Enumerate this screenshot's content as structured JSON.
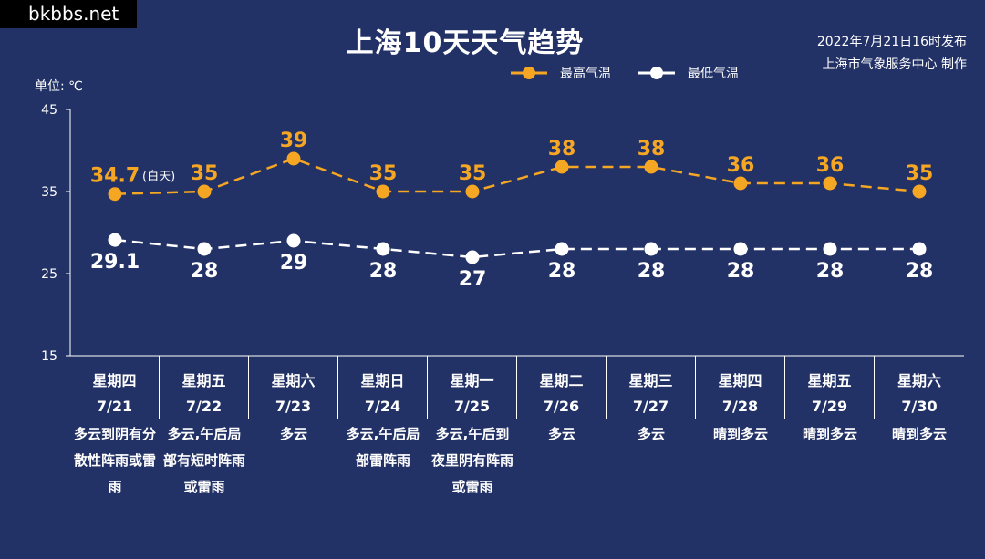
{
  "watermark": "bkbbs.net",
  "title": "上海10天天气趋势",
  "issued": {
    "line1": "2022年7月21日16时发布",
    "line2": "上海市气象服务中心 制作"
  },
  "unit_label": "单位: ℃",
  "legend": {
    "high": "最高气温",
    "low": "最低气温"
  },
  "colors": {
    "background": "#223166",
    "high": "#F5A623",
    "low": "#FFFFFF"
  },
  "chart_data": {
    "type": "line",
    "title": "上海10天天气趋势",
    "ylabel": "单位: ℃",
    "ylim": [
      15,
      45
    ],
    "yticks": [
      15,
      25,
      35,
      45
    ],
    "grid": false,
    "legend_position": "top-right",
    "categories": [
      "7/21",
      "7/22",
      "7/23",
      "7/24",
      "7/25",
      "7/26",
      "7/27",
      "7/28",
      "7/29",
      "7/30"
    ],
    "series": [
      {
        "name": "最高气温",
        "values": [
          34.7,
          35,
          39,
          35,
          35,
          38,
          38,
          36,
          36,
          35
        ],
        "labels": [
          "34.7",
          "35",
          "39",
          "35",
          "35",
          "38",
          "38",
          "36",
          "36",
          "35"
        ],
        "color": "#F5A623"
      },
      {
        "name": "最低气温",
        "values": [
          29.1,
          28,
          29,
          28,
          27,
          28,
          28,
          28,
          28,
          28
        ],
        "labels": [
          "29.1",
          "28",
          "29",
          "28",
          "27",
          "28",
          "28",
          "28",
          "28",
          "28"
        ],
        "color": "#FFFFFF"
      }
    ],
    "annotation": "(白天)"
  },
  "days": [
    {
      "weekday": "星期四",
      "date": "7/21",
      "weather": "多云到阴有分散性阵雨或雷雨"
    },
    {
      "weekday": "星期五",
      "date": "7/22",
      "weather": "多云,午后局部有短时阵雨或雷雨"
    },
    {
      "weekday": "星期六",
      "date": "7/23",
      "weather": "多云"
    },
    {
      "weekday": "星期日",
      "date": "7/24",
      "weather": "多云,午后局部雷阵雨"
    },
    {
      "weekday": "星期一",
      "date": "7/25",
      "weather": "多云,午后到夜里阴有阵雨或雷雨"
    },
    {
      "weekday": "星期二",
      "date": "7/26",
      "weather": "多云"
    },
    {
      "weekday": "星期三",
      "date": "7/27",
      "weather": "多云"
    },
    {
      "weekday": "星期四",
      "date": "7/28",
      "weather": "晴到多云"
    },
    {
      "weekday": "星期五",
      "date": "7/29",
      "weather": "晴到多云"
    },
    {
      "weekday": "星期六",
      "date": "7/30",
      "weather": "晴到多云"
    }
  ]
}
